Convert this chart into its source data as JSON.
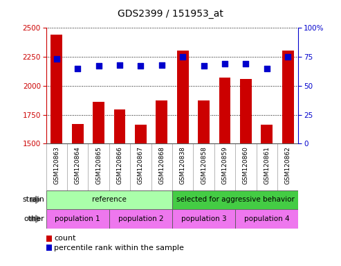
{
  "title": "GDS2399 / 151953_at",
  "samples": [
    "GSM120863",
    "GSM120864",
    "GSM120865",
    "GSM120866",
    "GSM120867",
    "GSM120868",
    "GSM120838",
    "GSM120858",
    "GSM120859",
    "GSM120860",
    "GSM120861",
    "GSM120862"
  ],
  "counts": [
    2440,
    1670,
    1860,
    1795,
    1665,
    1875,
    2305,
    1875,
    2070,
    2060,
    1665,
    2305
  ],
  "percentiles": [
    73,
    65,
    67,
    68,
    67,
    68,
    75,
    67,
    69,
    69,
    65,
    75
  ],
  "ylim_left": [
    1500,
    2500
  ],
  "ylim_right": [
    0,
    100
  ],
  "yticks_left": [
    1500,
    1750,
    2000,
    2250,
    2500
  ],
  "yticks_right": [
    0,
    25,
    50,
    75,
    100
  ],
  "bar_color": "#cc0000",
  "dot_color": "#0000cc",
  "strain_groups": [
    {
      "text": "reference",
      "start": 0,
      "end": 6,
      "color": "#aaffaa"
    },
    {
      "text": "selected for aggressive behavior",
      "start": 6,
      "end": 12,
      "color": "#44cc44"
    }
  ],
  "other_groups": [
    {
      "text": "population 1",
      "start": 0,
      "end": 3,
      "color": "#ee77ee"
    },
    {
      "text": "population 2",
      "start": 3,
      "end": 6,
      "color": "#ee77ee"
    },
    {
      "text": "population 3",
      "start": 6,
      "end": 9,
      "color": "#ee77ee"
    },
    {
      "text": "population 4",
      "start": 9,
      "end": 12,
      "color": "#ee77ee"
    }
  ],
  "tick_bg_color": "#cccccc",
  "tick_div_color": "#999999",
  "border_color": "#555555",
  "legend_count_text": "count",
  "legend_dot_text": "percentile rank within the sample"
}
